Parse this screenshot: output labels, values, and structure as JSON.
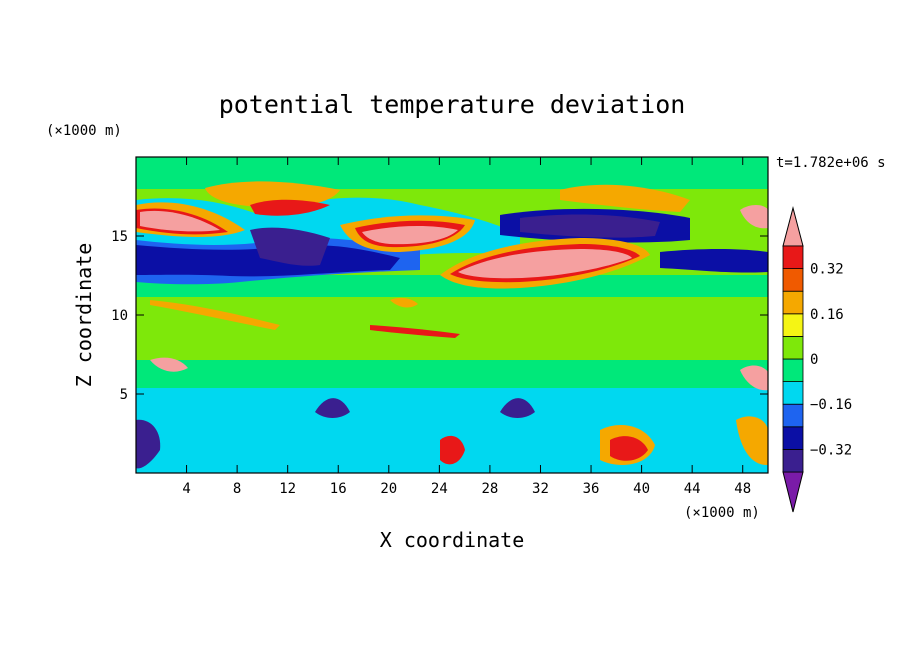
{
  "chart_data": {
    "type": "heatmap",
    "title": "potential temperature deviation",
    "xlabel": "X coordinate",
    "ylabel": "Z coordinate",
    "x_unit": "(×1000 m)",
    "y_unit": "(×1000 m)",
    "time_label": "t=1.782e+06 s",
    "xlim": [
      0,
      50
    ],
    "ylim": [
      0,
      20
    ],
    "x_ticks": [
      4,
      8,
      12,
      16,
      20,
      24,
      28,
      32,
      36,
      40,
      44,
      48
    ],
    "y_ticks": [
      5,
      10,
      15
    ],
    "colorbar": {
      "levels": [
        -0.4,
        -0.32,
        -0.24,
        -0.16,
        -0.08,
        0,
        0.08,
        0.16,
        0.24,
        0.32,
        0.4
      ],
      "tick_labels": [
        "0.32",
        "0.16",
        "0",
        "−0.16",
        "−0.32"
      ],
      "tick_values": [
        0.32,
        0.16,
        0,
        -0.16,
        -0.32
      ],
      "colors": [
        "#7a1ba8",
        "#3a1f8f",
        "#0b0fa5",
        "#1e64f0",
        "#00d8f0",
        "#00e87a",
        "#7ee80a",
        "#f5f514",
        "#f5a800",
        "#f05a00",
        "#e81818",
        "#f5a0a0"
      ]
    }
  }
}
